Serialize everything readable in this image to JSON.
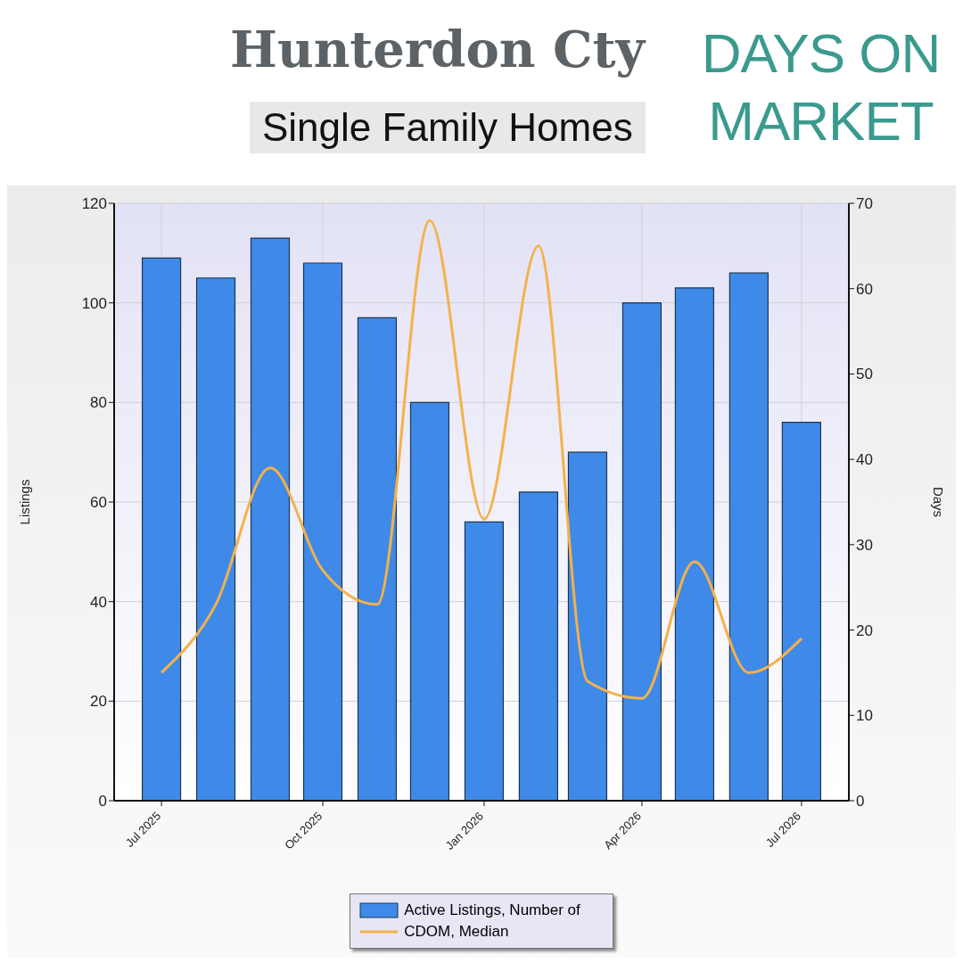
{
  "chart_data": {
    "type": "bar",
    "title": "Hunterdon Cty",
    "subtitle": "Single Family Homes",
    "annotations": [
      "DAYS ON MARKET"
    ],
    "x": [
      "2025-07",
      "2025-08",
      "2025-09",
      "2025-10",
      "2025-11",
      "2025-12",
      "2026-01",
      "2026-02",
      "2026-03",
      "2026-04",
      "2026-05",
      "2026-06",
      "2026-07"
    ],
    "series": [
      {
        "name": "Active Listings, Number of",
        "color": "#3f8ae8",
        "values": [
          109,
          105,
          113,
          108,
          97,
          80,
          56,
          62,
          70,
          100,
          103,
          106,
          76
        ]
      },
      {
        "name": "CDOM, Median",
        "type": "line",
        "axis": "y2",
        "color": "#f5b14a",
        "values": [
          15,
          23,
          39,
          27,
          23,
          68,
          33,
          65,
          14,
          12,
          28,
          15,
          19
        ]
      }
    ],
    "xlim": [
      "2025-06-04",
      "2026-07-28"
    ],
    "xticks": [
      {
        "value": "2025-07",
        "label": "Jul 2025"
      },
      {
        "value": "2025-10",
        "label": "Oct 2025"
      },
      {
        "value": "2026-01",
        "label": "Jan 2026"
      },
      {
        "value": "2026-04",
        "label": "Apr 2026"
      },
      {
        "value": "2026-07",
        "label": "Jul 2026"
      }
    ],
    "ylim": [
      0,
      120
    ],
    "yticks": [
      0,
      20,
      40,
      60,
      80,
      100,
      120
    ],
    "y2lim": [
      0,
      70
    ],
    "y2ticks": [
      0,
      10,
      20,
      30,
      40,
      50,
      60,
      70
    ],
    "ylabel": "Listings",
    "y2label": "Days",
    "grid": true,
    "legend": "bottom",
    "marker": "none",
    "line_style": "solid"
  }
}
